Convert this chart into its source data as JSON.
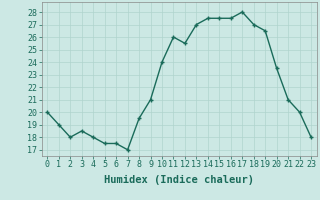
{
  "x": [
    0,
    1,
    2,
    3,
    4,
    5,
    6,
    7,
    8,
    9,
    10,
    11,
    12,
    13,
    14,
    15,
    16,
    17,
    18,
    19,
    20,
    21,
    22,
    23
  ],
  "y": [
    20,
    19.0,
    18,
    18.5,
    18,
    17.5,
    17.5,
    17,
    19.5,
    21,
    24,
    26,
    25.5,
    27,
    27.5,
    27.5,
    27.5,
    28,
    27,
    26.5,
    23.5,
    21,
    20,
    18
  ],
  "line_color": "#1a6b5a",
  "marker": "+",
  "marker_size": 3.5,
  "bg_color": "#cce8e4",
  "grid_color": "#b0d4ce",
  "xlabel": "Humidex (Indice chaleur)",
  "ylabel_ticks": [
    17,
    18,
    19,
    20,
    21,
    22,
    23,
    24,
    25,
    26,
    27,
    28
  ],
  "xtick_labels": [
    "0",
    "1",
    "2",
    "3",
    "4",
    "5",
    "6",
    "7",
    "8",
    "9",
    "10",
    "11",
    "12",
    "13",
    "14",
    "15",
    "16",
    "17",
    "18",
    "19",
    "20",
    "21",
    "22",
    "23"
  ],
  "ylim": [
    16.5,
    28.8
  ],
  "xlim": [
    -0.5,
    23.5
  ],
  "xlabel_fontsize": 7.5,
  "tick_fontsize": 6.0,
  "line_width": 1.0
}
